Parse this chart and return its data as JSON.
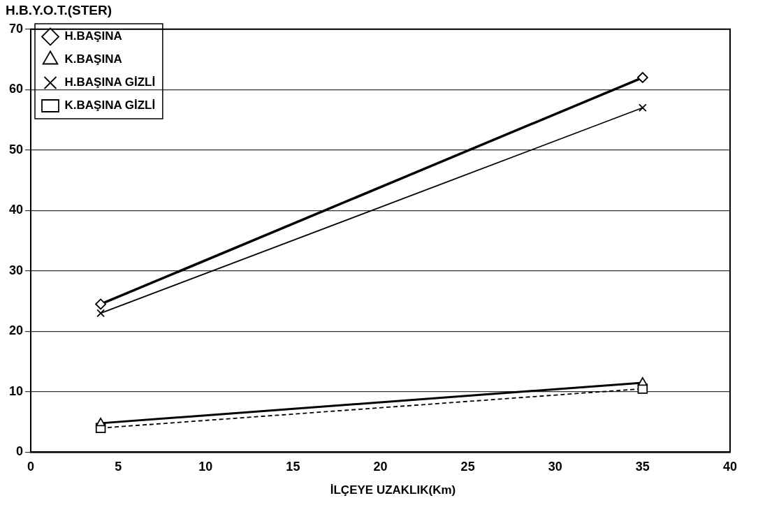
{
  "chart_data": {
    "type": "line",
    "ylabel": "H.B.Y.O.T.(STER)",
    "xlabel": "İLÇEYE UZAKLIK(Km)",
    "x": [
      4,
      35
    ],
    "series": [
      {
        "name": "H.BAŞINA",
        "color": "#000000",
        "values": [
          24.5,
          62
        ],
        "marker": "diamond",
        "line_style": "solid"
      },
      {
        "name": "K.BAŞINA",
        "color": "#000000",
        "values": [
          4.8,
          11.5
        ],
        "marker": "triangle",
        "line_style": "solid"
      },
      {
        "name": "H.BAŞINA GİZLİ",
        "color": "#000000",
        "values": [
          23,
          57
        ],
        "marker": "cross",
        "line_style": "solid"
      },
      {
        "name": "K.BAŞINA GİZLİ",
        "color": "#000000",
        "values": [
          4,
          10.5
        ],
        "marker": "square",
        "line_style": "dashed"
      }
    ],
    "xlim": [
      0,
      40
    ],
    "xticks": [
      0,
      5,
      10,
      15,
      20,
      25,
      30,
      35,
      40
    ],
    "ylim": [
      0,
      70
    ],
    "yticks": [
      0,
      10,
      20,
      30,
      40,
      50,
      60,
      70
    ],
    "grid": "y",
    "legend": "top left"
  }
}
